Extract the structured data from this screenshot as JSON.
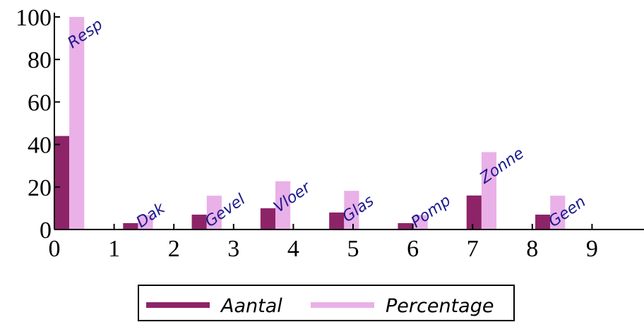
{
  "chart_data": {
    "type": "bar",
    "x": [
      0,
      1.15,
      2.3,
      3.45,
      4.6,
      5.75,
      6.9,
      8.05
    ],
    "annotations": [
      "Resp",
      "Dak",
      "Gevel",
      "Vloer",
      "Glas",
      "Pomp",
      "Zonne",
      "Geen"
    ],
    "bar_width": 0.25,
    "series": [
      {
        "name": "Aantal",
        "color": "#8e2468",
        "values": [
          44,
          3,
          7,
          10,
          8,
          3,
          16,
          7
        ]
      },
      {
        "name": "Percentage",
        "color": "#eab0e8",
        "values": [
          100,
          6.8,
          15.9,
          22.7,
          18.2,
          6.8,
          36.4,
          15.9
        ]
      }
    ],
    "xlim": [
      0,
      9.87
    ],
    "xticks": [
      0,
      1,
      2,
      3,
      4,
      5,
      6,
      7,
      8,
      9
    ],
    "ylim": [
      0,
      102
    ],
    "yticks": [
      0,
      20,
      40,
      60,
      80,
      100
    ],
    "legend": "bottom"
  }
}
